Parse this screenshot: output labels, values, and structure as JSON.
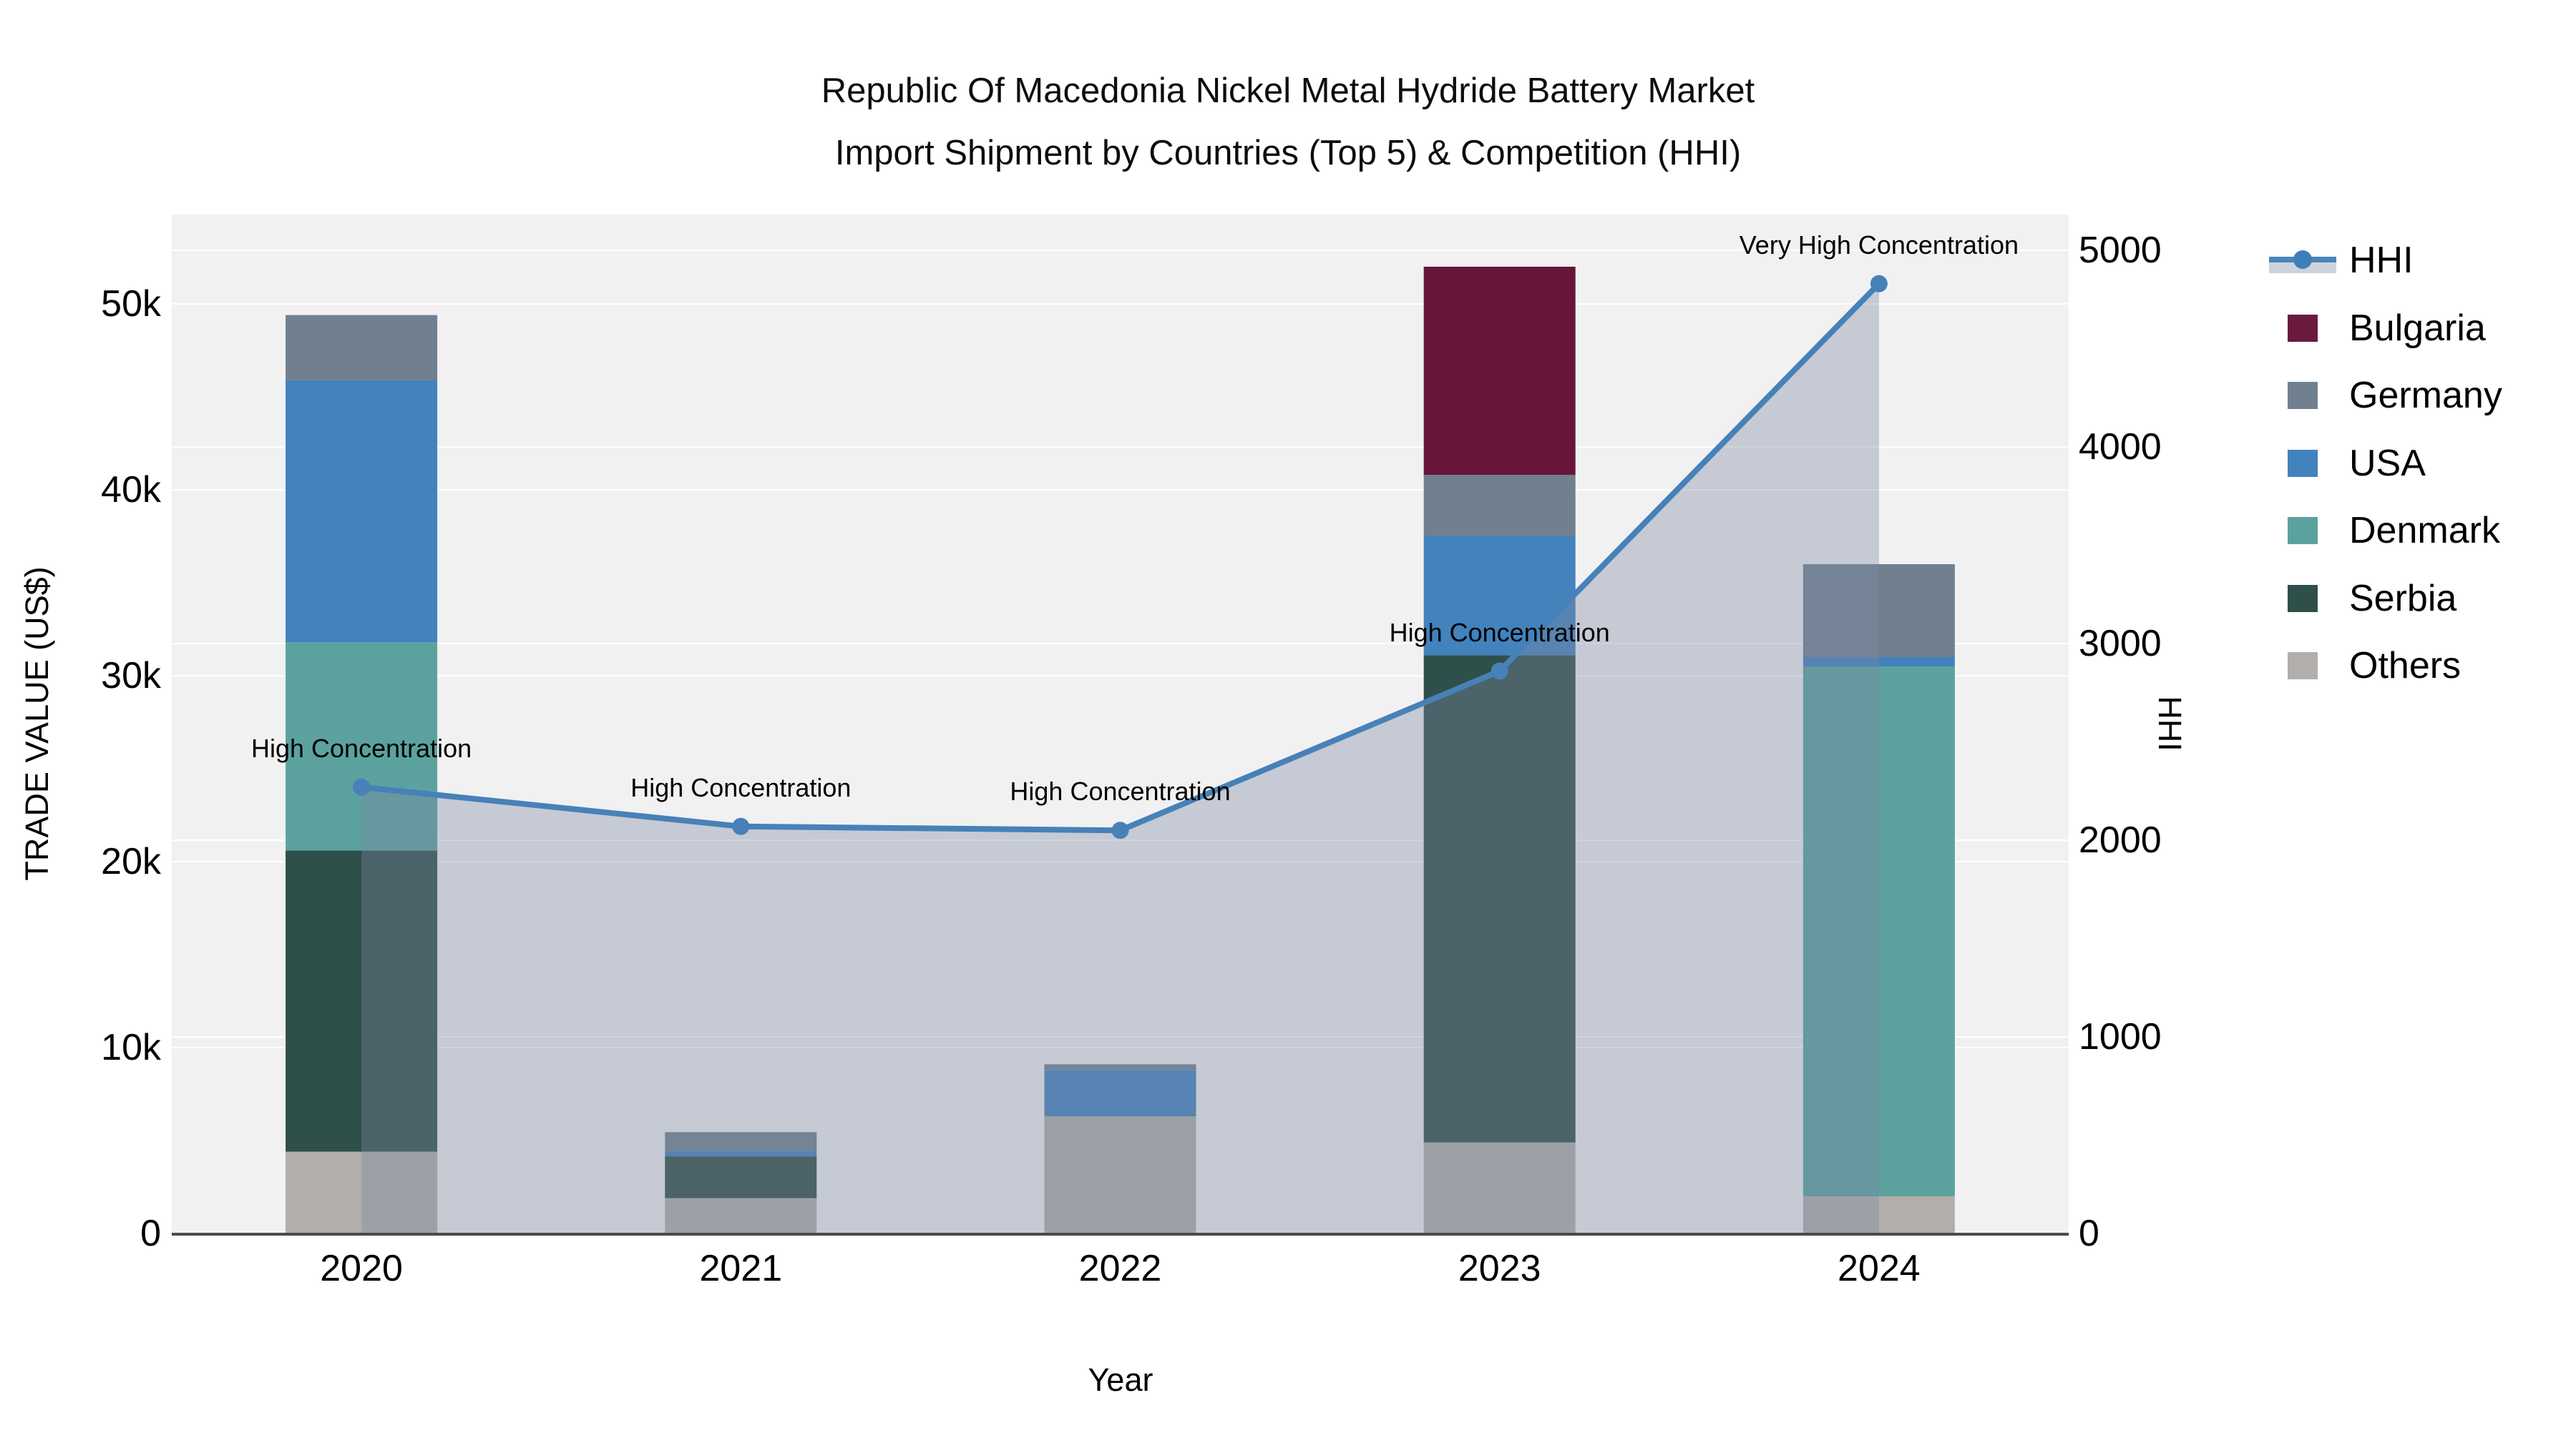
{
  "title": {
    "line1": "Republic Of Macedonia Nickel Metal Hydride Battery Market",
    "line2": "Import Shipment by Countries (Top 5) & Competition (HHI)"
  },
  "axes": {
    "y_left_title": "TRADE VALUE (US$)",
    "y_right_title": "HHI",
    "x_title": "Year",
    "y_left_ticks": [
      "0",
      "10k",
      "20k",
      "30k",
      "40k",
      "50k"
    ],
    "y_right_ticks": [
      "0",
      "1000",
      "2000",
      "3000",
      "4000",
      "5000"
    ],
    "x_ticks": [
      "2020",
      "2021",
      "2022",
      "2023",
      "2024"
    ]
  },
  "legend": {
    "items": [
      {
        "label": "HHI",
        "kind": "line",
        "color": "#4a86bc"
      },
      {
        "label": "Bulgaria",
        "kind": "square",
        "color": "#6b1a3f"
      },
      {
        "label": "Germany",
        "kind": "square",
        "color": "#70808f"
      },
      {
        "label": "USA",
        "kind": "square",
        "color": "#4282bd"
      },
      {
        "label": "Denmark",
        "kind": "square",
        "color": "#5ba29f"
      },
      {
        "label": "Serbia",
        "kind": "square",
        "color": "#2e4f4a"
      },
      {
        "label": "Others",
        "kind": "square",
        "color": "#b1aeab"
      }
    ]
  },
  "chart_data": {
    "type": "bar",
    "subtype": "stacked-bar-with-line-overlay",
    "title": "Republic Of Macedonia Nickel Metal Hydride Battery Market Import Shipment by Countries (Top 5) & Competition (HHI)",
    "xlabel": "Year",
    "ylabel_left": "TRADE VALUE (US$)",
    "ylabel_right": "HHI",
    "categories": [
      "2020",
      "2021",
      "2022",
      "2023",
      "2024"
    ],
    "ylim_left": [
      0,
      54800
    ],
    "ylim_right": [
      0,
      5260
    ],
    "grid": true,
    "legend_position": "right",
    "stack_order_bottom_to_top": [
      "Others",
      "Serbia",
      "Denmark",
      "USA",
      "Germany",
      "Bulgaria"
    ],
    "series": [
      {
        "name": "Bulgaria",
        "color": "#671539",
        "values": [
          0,
          0,
          0,
          11200,
          0
        ]
      },
      {
        "name": "Germany",
        "color": "#70808f",
        "values": [
          3500,
          1000,
          300,
          3300,
          5000
        ]
      },
      {
        "name": "USA",
        "color": "#4282bd",
        "values": [
          14100,
          300,
          2500,
          6400,
          500
        ]
      },
      {
        "name": "Denmark",
        "color": "#5ba29f",
        "values": [
          11200,
          0,
          0,
          0,
          28500
        ]
      },
      {
        "name": "Serbia",
        "color": "#2e4f4a",
        "values": [
          16200,
          2250,
          0,
          26200,
          0
        ]
      },
      {
        "name": "Others",
        "color": "#b1aeab",
        "values": [
          4400,
          1900,
          6300,
          4900,
          2000
        ]
      }
    ],
    "bar_totals": [
      49400,
      5450,
      9100,
      52000,
      36000
    ],
    "line_series": {
      "name": "HHI",
      "color": "#4781b8",
      "area_fill": "rgba(126,136,161,0.37)",
      "values": [
        2270,
        2070,
        2050,
        2860,
        4830
      ]
    },
    "annotations": [
      {
        "category": "2020",
        "text": "High Concentration"
      },
      {
        "category": "2021",
        "text": "High Concentration"
      },
      {
        "category": "2022",
        "text": "High Concentration"
      },
      {
        "category": "2023",
        "text": "High Concentration"
      },
      {
        "category": "2024",
        "text": "Very High Concentration"
      }
    ]
  }
}
